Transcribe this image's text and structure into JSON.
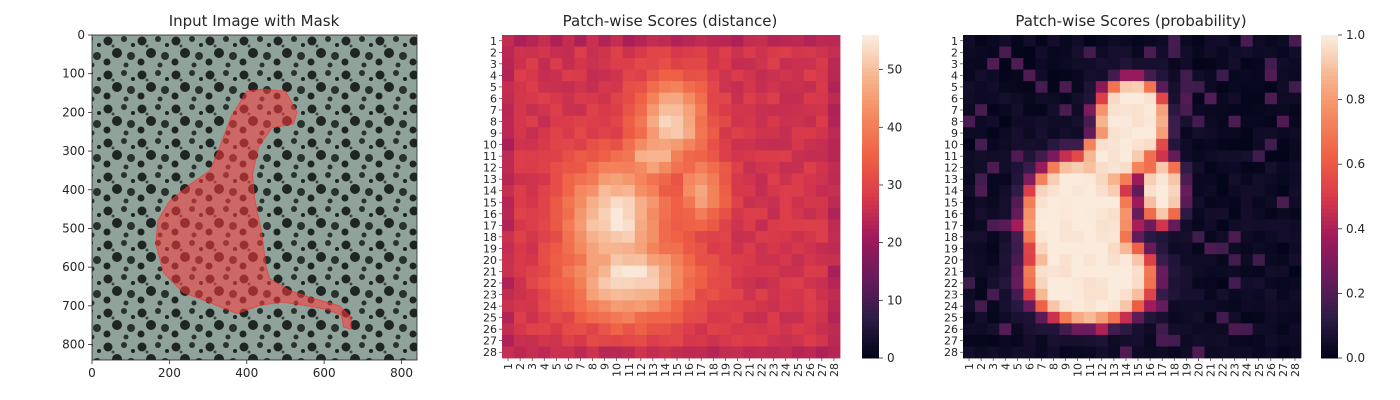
{
  "colors": {
    "rocket_stops": [
      "#03051a",
      "#2f1c47",
      "#6a1b5c",
      "#a11a5b",
      "#d93a4a",
      "#ef6045",
      "#f4875d",
      "#f6b48f",
      "#faebdd"
    ],
    "mask_overlay": "#ff3b3b",
    "texture_light": "#8fa39b",
    "texture_dark": "#1e2523"
  },
  "chart_data": [
    {
      "type": "image",
      "title": "Input Image with Mask",
      "xlim": [
        0,
        840
      ],
      "ylim": [
        840,
        0
      ],
      "xticks": [
        0,
        200,
        400,
        600,
        800
      ],
      "yticks": [
        0,
        100,
        200,
        300,
        400,
        500,
        600,
        700,
        800
      ],
      "mask_polygon": [
        [
          500,
          145
        ],
        [
          530,
          200
        ],
        [
          520,
          230
        ],
        [
          465,
          240
        ],
        [
          430,
          290
        ],
        [
          415,
          360
        ],
        [
          420,
          420
        ],
        [
          440,
          520
        ],
        [
          450,
          600
        ],
        [
          460,
          630
        ],
        [
          510,
          660
        ],
        [
          570,
          680
        ],
        [
          640,
          700
        ],
        [
          670,
          730
        ],
        [
          670,
          760
        ],
        [
          650,
          755
        ],
        [
          645,
          725
        ],
        [
          610,
          710
        ],
        [
          555,
          700
        ],
        [
          490,
          690
        ],
        [
          430,
          700
        ],
        [
          375,
          720
        ],
        [
          300,
          690
        ],
        [
          235,
          665
        ],
        [
          185,
          615
        ],
        [
          165,
          540
        ],
        [
          170,
          480
        ],
        [
          200,
          430
        ],
        [
          255,
          385
        ],
        [
          305,
          350
        ],
        [
          330,
          290
        ],
        [
          360,
          210
        ],
        [
          400,
          145
        ],
        [
          440,
          140
        ]
      ]
    },
    {
      "type": "heatmap",
      "title": "Patch-wise Scores (distance)",
      "rows": 28,
      "cols": 28,
      "vmin": 0,
      "vmax": 56,
      "colorbar_ticks": [
        0,
        10,
        20,
        30,
        40,
        50
      ],
      "xticklabels": [
        "1",
        "2",
        "3",
        "4",
        "5",
        "6",
        "7",
        "8",
        "9",
        "10",
        "11",
        "12",
        "13",
        "14",
        "15",
        "16",
        "17",
        "18",
        "19",
        "20",
        "21",
        "22",
        "23",
        "24",
        "25",
        "26",
        "27",
        "28"
      ],
      "yticklabels": [
        "1",
        "2",
        "3",
        "4",
        "5",
        "6",
        "7",
        "8",
        "9",
        "10",
        "11",
        "12",
        "13",
        "14",
        "15",
        "16",
        "17",
        "18",
        "19",
        "20",
        "21",
        "22",
        "23",
        "24",
        "25",
        "26",
        "27",
        "28"
      ],
      "value_scale": {
        "background": 27,
        "peak": 55
      }
    },
    {
      "type": "heatmap",
      "title": "Patch-wise Scores (probability)",
      "rows": 28,
      "cols": 28,
      "vmin": 0.0,
      "vmax": 1.0,
      "colorbar_ticks": [
        "0.0",
        "0.2",
        "0.4",
        "0.6",
        "0.8",
        "1.0"
      ],
      "xticklabels": [
        "1",
        "2",
        "3",
        "4",
        "5",
        "6",
        "7",
        "8",
        "9",
        "10",
        "11",
        "12",
        "13",
        "14",
        "15",
        "16",
        "17",
        "18",
        "19",
        "20",
        "21",
        "22",
        "23",
        "24",
        "25",
        "26",
        "27",
        "28"
      ],
      "yticklabels": [
        "1",
        "2",
        "3",
        "4",
        "5",
        "6",
        "7",
        "8",
        "9",
        "10",
        "11",
        "12",
        "13",
        "14",
        "15",
        "16",
        "17",
        "18",
        "19",
        "20",
        "21",
        "22",
        "23",
        "24",
        "25",
        "26",
        "27",
        "28"
      ],
      "value_scale": {
        "background": 0.02,
        "peak": 1.0
      }
    }
  ]
}
